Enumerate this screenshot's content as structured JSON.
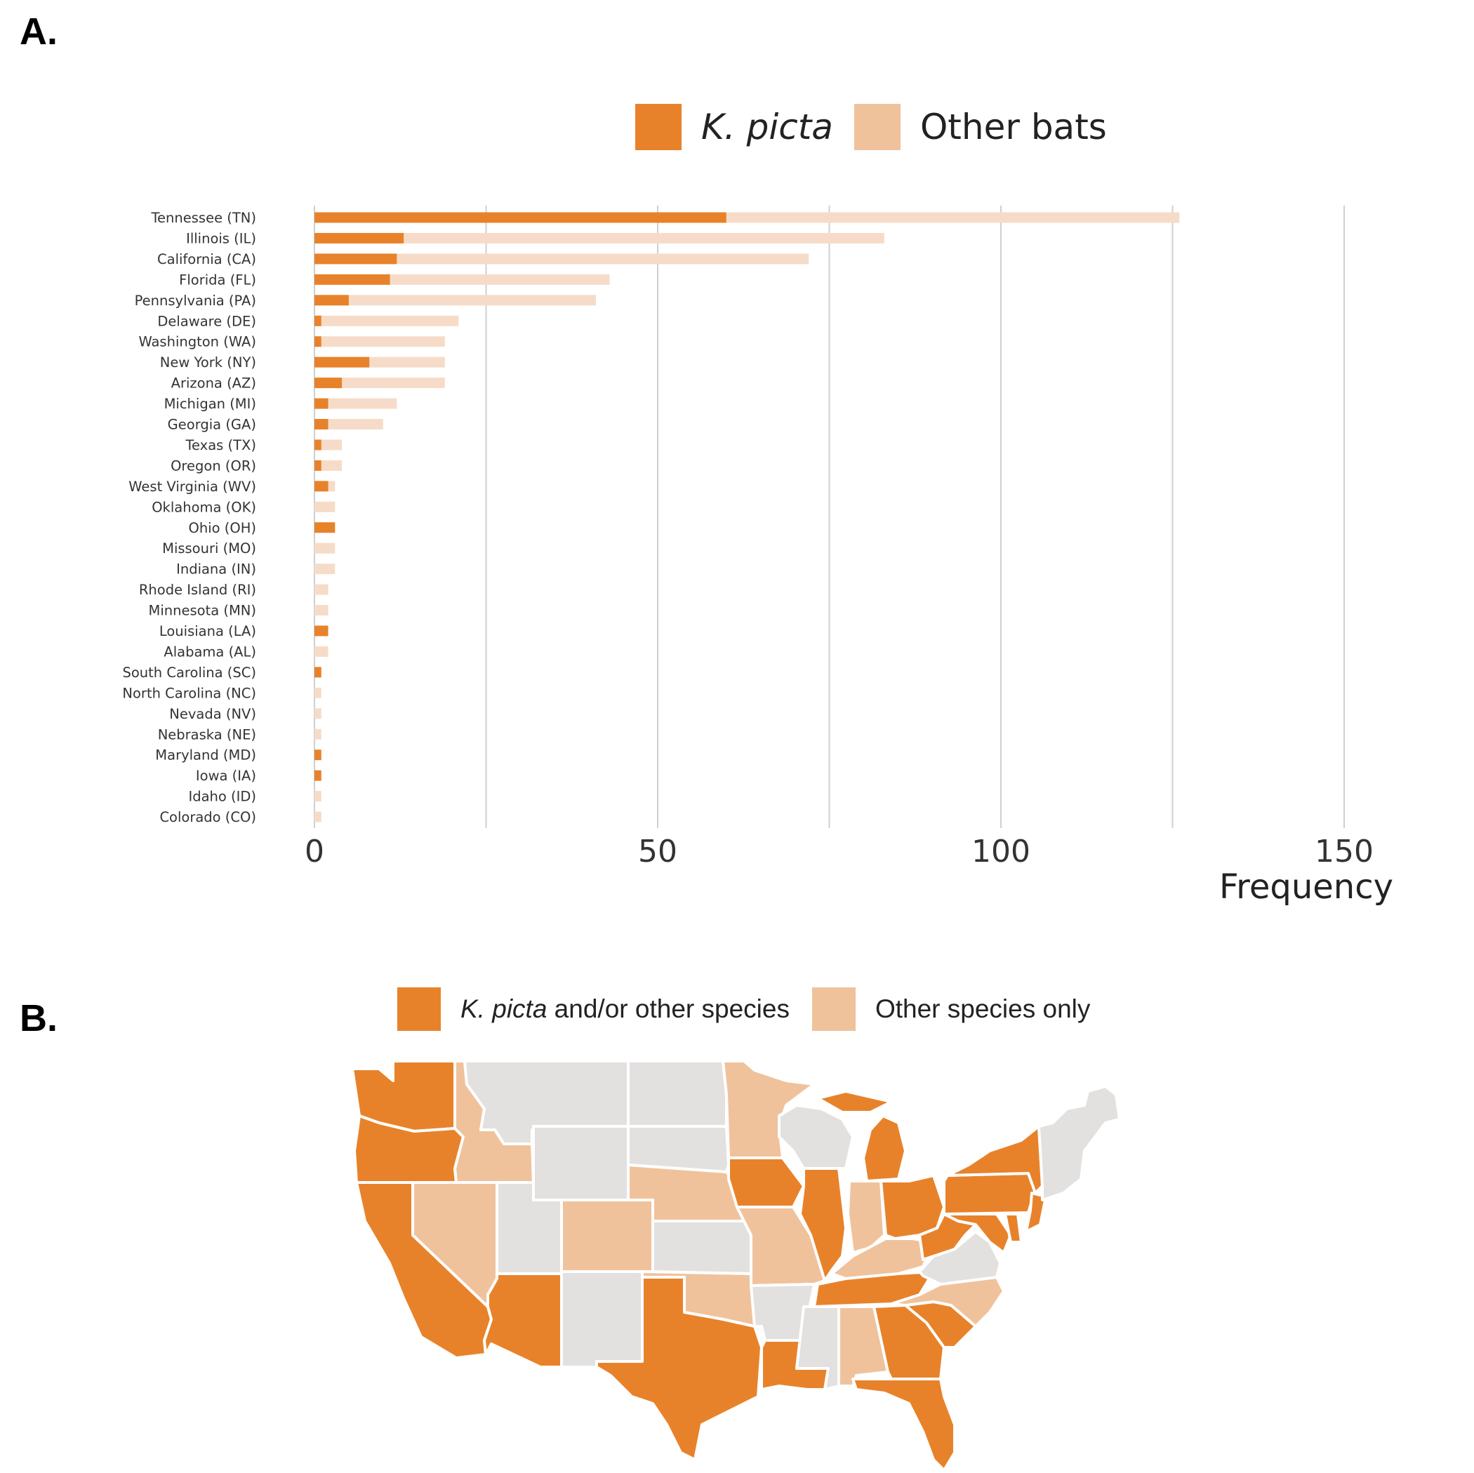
{
  "panels": {
    "a_label": "A.",
    "b_label": "B."
  },
  "legend_a": {
    "kpicta": "K. picta",
    "other": "Other bats"
  },
  "legend_b": {
    "kpicta_italic": "K. picta",
    "kpicta_rest": " and/or other species",
    "other": "Other species only"
  },
  "colors": {
    "kpicta": "#e8822a",
    "other": "#f0c29c",
    "other_bar": "#f6dcc8",
    "gray_state": "#e2e1df",
    "grid": "#cfcfcf"
  },
  "chart_data": {
    "type": "bar",
    "orientation": "horizontal",
    "stacked": true,
    "xlabel": "Frequency",
    "xlim": [
      0,
      157
    ],
    "xticks": [
      0,
      50,
      100,
      150
    ],
    "grid": true,
    "legend_position": "top",
    "categories": [
      "Tennessee (TN)",
      "Illinois (IL)",
      "California (CA)",
      "Florida (FL)",
      "Pennsylvania (PA)",
      "Delaware (DE)",
      "Washington (WA)",
      "New York (NY)",
      "Arizona (AZ)",
      "Michigan (MI)",
      "Georgia (GA)",
      "Texas (TX)",
      "Oregon (OR)",
      "West Virginia (WV)",
      "Oklahoma (OK)",
      "Ohio (OH)",
      "Missouri (MO)",
      "Indiana (IN)",
      "Rhode Island (RI)",
      "Minnesota (MN)",
      "Louisiana (LA)",
      "Alabama (AL)",
      "South Carolina (SC)",
      "North Carolina (NC)",
      "Nevada (NV)",
      "Nebraska (NE)",
      "Maryland (MD)",
      "Iowa (IA)",
      "Idaho (ID)",
      "Colorado (CO)"
    ],
    "series": [
      {
        "name": "K. picta",
        "values": [
          60,
          13,
          12,
          11,
          5,
          1,
          1,
          8,
          4,
          2,
          2,
          1,
          1,
          2,
          0,
          3,
          0,
          0,
          0,
          0,
          2,
          0,
          1,
          0,
          0,
          0,
          1,
          1,
          0,
          0
        ]
      },
      {
        "name": "Other bats",
        "values": [
          66,
          70,
          60,
          32,
          36,
          20,
          18,
          11,
          15,
          10,
          8,
          3,
          3,
          1,
          3,
          0,
          3,
          3,
          2,
          2,
          0,
          2,
          0,
          1,
          1,
          1,
          0,
          0,
          1,
          1
        ]
      }
    ]
  },
  "map_data": {
    "categories": [
      "K. picta and/or other species",
      "Other species only"
    ],
    "kpicta": [
      "WA",
      "OR",
      "CA",
      "AZ",
      "TX",
      "LA",
      "IA",
      "IL",
      "MI",
      "OH",
      "WV",
      "PA",
      "NY",
      "TN",
      "GA",
      "SC",
      "FL",
      "MD",
      "DE",
      "NJ"
    ],
    "other_only": [
      "ID",
      "NV",
      "CO",
      "NE",
      "MN",
      "MO",
      "OK",
      "IN",
      "KY",
      "NC",
      "AL"
    ]
  }
}
